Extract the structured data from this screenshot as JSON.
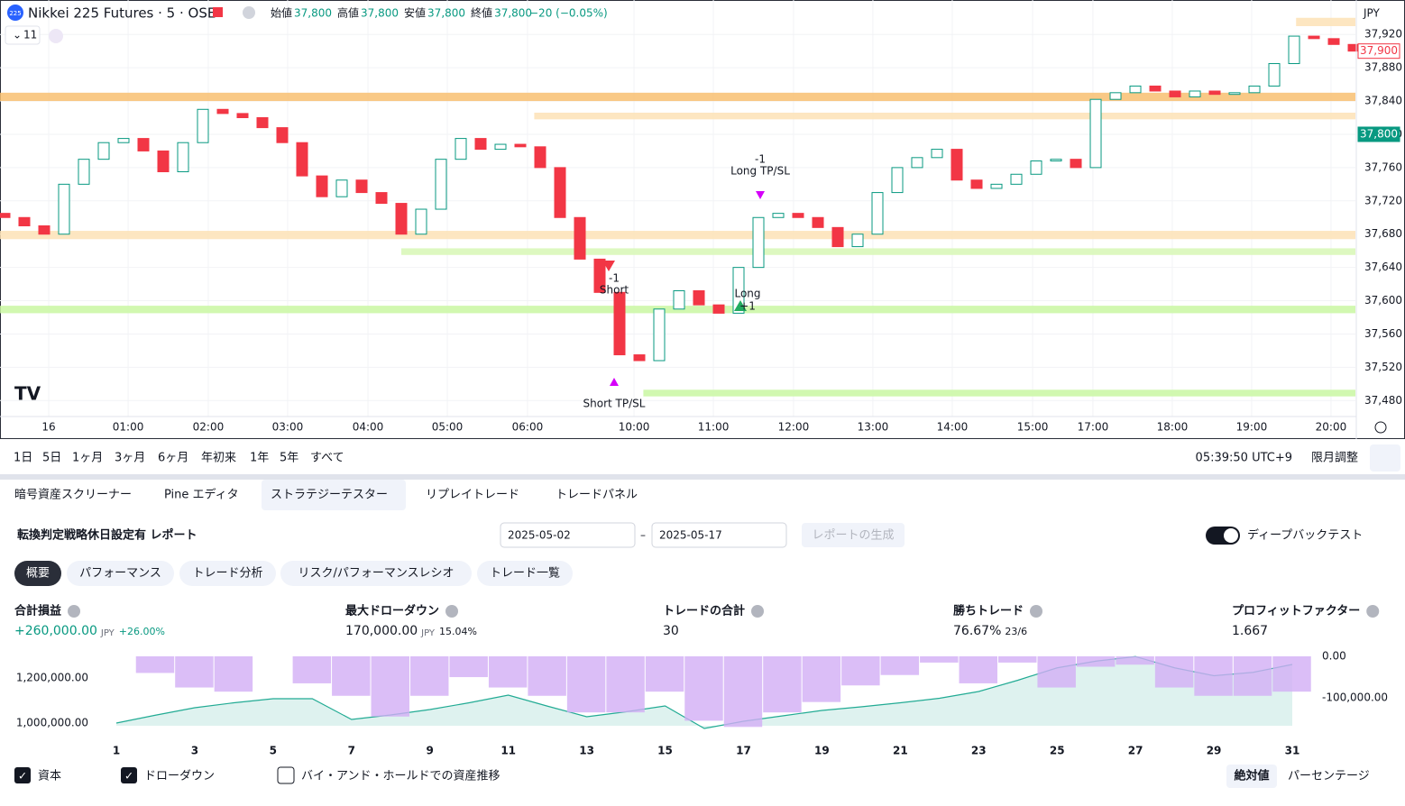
{
  "header": {
    "logo": "225",
    "symbol": "Nikkei 225 Futures · 5 · OSE",
    "indicator_count": "11",
    "ohlc": [
      {
        "label": "始値",
        "value": "37,800"
      },
      {
        "label": "高値",
        "value": "37,800"
      },
      {
        "label": "安値",
        "value": "37,800"
      },
      {
        "label": "終値",
        "value": "37,800"
      }
    ],
    "change": "−20 (−0.05%)"
  },
  "toolbar": {
    "ranges": [
      "1日",
      "5日",
      "1ヶ月",
      "3ヶ月",
      "6ヶ月",
      "年初来",
      "1年",
      "5年",
      "すべて"
    ],
    "clock": "05:39:50 UTC+9",
    "adjust": "限月調整"
  },
  "panel": {
    "tabs": [
      "暗号資産スクリーナー",
      "Pine エディタ",
      "ストラテジーテスター",
      "リプレイトレード",
      "トレードパネル"
    ],
    "report_title": "転換判定戦略休日設定有 レポート",
    "date_from": "2025-05-02",
    "date_to": "2025-05-17",
    "generate": "レポートの生成",
    "deep_backtest": "ディープバックテスト",
    "subtabs": [
      "概要",
      "パフォーマンス",
      "トレード分析",
      "リスク/パフォーマンスレシオ",
      "トレード一覧"
    ],
    "metrics": [
      {
        "label": "合計損益",
        "value": "+260,000.00",
        "unit": "JPY",
        "extra": "+26.00%"
      },
      {
        "label": "最大ドローダウン",
        "value": "170,000.00",
        "unit": "JPY",
        "extra": "15.04%"
      },
      {
        "label": "トレードの合計",
        "value": "30"
      },
      {
        "label": "勝ちトレード",
        "value": "76.67%",
        "extra": "23/6"
      },
      {
        "label": "プロフィットファクター",
        "value": "1.667"
      }
    ],
    "buy_hold": "バイ・アンド・ホールドでの資産推移",
    "modes": [
      "絶対値",
      "パーセンテージ"
    ]
  },
  "chart_data": [
    {
      "type": "candlestick",
      "currency": "JPY",
      "up_color": "#089981",
      "down_color": "#f23645",
      "open": [
        37705,
        37700,
        37690,
        37680,
        37740,
        37770,
        37790,
        37795,
        37780,
        37755,
        37790,
        37830,
        37825,
        37820,
        37808,
        37790,
        37750,
        37725,
        37745,
        37730,
        37717,
        37680,
        37710,
        37770,
        37795,
        37782,
        37788,
        37785,
        37760,
        37700,
        37650,
        37610,
        37535,
        37528,
        37590,
        37612,
        37595,
        37585,
        37640,
        37700,
        37705,
        37700,
        37688,
        37665,
        37680,
        37730,
        37760,
        37772,
        37782,
        37745,
        37735,
        37740,
        37752,
        37768,
        37770,
        37760,
        37842,
        37850,
        37858,
        37852,
        37845,
        37852,
        37848,
        37850,
        37858,
        37885,
        37918,
        37915,
        37908
      ],
      "close": [
        37700,
        37690,
        37680,
        37740,
        37770,
        37790,
        37795,
        37780,
        37755,
        37790,
        37830,
        37825,
        37820,
        37808,
        37790,
        37750,
        37725,
        37745,
        37730,
        37717,
        37680,
        37710,
        37770,
        37795,
        37782,
        37788,
        37785,
        37760,
        37700,
        37650,
        37610,
        37535,
        37528,
        37590,
        37612,
        37595,
        37585,
        37640,
        37700,
        37705,
        37700,
        37688,
        37665,
        37680,
        37730,
        37760,
        37772,
        37782,
        37745,
        37735,
        37740,
        37752,
        37768,
        37770,
        37760,
        37842,
        37850,
        37858,
        37852,
        37845,
        37852,
        37848,
        37850,
        37858,
        37885,
        37918,
        37915,
        37908,
        37900
      ],
      "xlim": [
        -0.227,
        68.09
      ],
      "xticks": [
        {
          "value": 2.23,
          "label": "16"
        },
        {
          "value": 6.23,
          "label": "01:00"
        },
        {
          "value": 10.27,
          "label": "02:00"
        },
        {
          "value": 14.27,
          "label": "03:00"
        },
        {
          "value": 18.32,
          "label": "04:00"
        },
        {
          "value": 22.32,
          "label": "05:00"
        },
        {
          "value": 26.36,
          "label": "06:00"
        },
        {
          "value": 31.73,
          "label": "10:00"
        },
        {
          "value": 35.73,
          "label": "11:00"
        },
        {
          "value": 39.77,
          "label": "12:00"
        },
        {
          "value": 43.77,
          "label": "13:00"
        },
        {
          "value": 47.77,
          "label": "14:00"
        },
        {
          "value": 51.82,
          "label": "15:00"
        },
        {
          "value": 54.86,
          "label": "17:00"
        },
        {
          "value": 58.86,
          "label": "18:00"
        },
        {
          "value": 62.86,
          "label": "19:00"
        },
        {
          "value": 66.86,
          "label": "20:00"
        }
      ],
      "ylim": [
        37463,
        37956
      ],
      "yticks": [
        {
          "value": 37480,
          "label": "37,480"
        },
        {
          "value": 37520,
          "label": "37,520"
        },
        {
          "value": 37560,
          "label": "37,560"
        },
        {
          "value": 37600,
          "label": "37,600"
        },
        {
          "value": 37640,
          "label": "37,640"
        },
        {
          "value": 37680,
          "label": "37,680"
        },
        {
          "value": 37720,
          "label": "37,720"
        },
        {
          "value": 37760,
          "label": "37,760"
        },
        {
          "value": 37800,
          "label": "37,800"
        },
        {
          "value": 37840,
          "label": "37,840"
        },
        {
          "value": 37880,
          "label": "37,880"
        },
        {
          "value": 37920,
          "label": "37,920"
        }
      ],
      "last_price": {
        "value": 37900,
        "label": "37,900"
      },
      "marked_price": {
        "value": 37800,
        "label": "37,800"
      },
      "zones": [
        {
          "from": 37840,
          "to": 37850,
          "start": -0.227,
          "color": "#f8c071"
        },
        {
          "from": 37818,
          "to": 37826,
          "start": 26.7,
          "color": "#fde2b6"
        },
        {
          "from": 37674,
          "to": 37684,
          "start": -0.227,
          "color": "#fde2b6"
        },
        {
          "from": 37930,
          "to": 37940,
          "start": 65.1,
          "color": "#fde2b6"
        },
        {
          "from": 37655,
          "to": 37663,
          "start": 20,
          "color": "#d7f7b5"
        },
        {
          "from": 37585,
          "to": 37594,
          "start": -0.227,
          "color": "#c9f7a2"
        },
        {
          "from": 37485,
          "to": 37493,
          "start": 32.2,
          "color": "#c9f7a2"
        }
      ],
      "annotations": [
        "-1",
        "Long TP/SL",
        "-1",
        "Short",
        "Long",
        "+1",
        "Short TP/SL"
      ]
    },
    {
      "type": "equity-drawdown",
      "x": [
        1,
        2,
        3,
        4,
        5,
        6,
        7,
        8,
        9,
        10,
        11,
        12,
        13,
        14,
        15,
        16,
        17,
        18,
        19,
        20,
        21,
        22,
        23,
        24,
        25,
        26,
        27,
        28,
        29,
        30,
        31
      ],
      "series": [
        {
          "name": "資本",
          "color": "#22ab94",
          "values": [
            1000000,
            1035000,
            1068000,
            1090000,
            1108000,
            1108000,
            1016000,
            1036000,
            1060000,
            1090000,
            1124000,
            1075000,
            1028000,
            1050000,
            1076000,
            976000,
            1008000,
            1032000,
            1056000,
            1072000,
            1090000,
            1110000,
            1140000,
            1190000,
            1245000,
            1275000,
            1295000,
            1245000,
            1210000,
            1225000,
            1260000
          ]
        },
        {
          "name": "ドローダウン",
          "color": "#d2aef5",
          "axis": "y2",
          "values": [
            0,
            -40000,
            -75000,
            -85000,
            0,
            -65000,
            -95000,
            -145000,
            -95000,
            -50000,
            -75000,
            -95000,
            -135000,
            -135000,
            -85000,
            -155000,
            -170000,
            -135000,
            -110000,
            -70000,
            -45000,
            -15000,
            -65000,
            -15000,
            -75000,
            -25000,
            -20000,
            -75000,
            -95000,
            -95000,
            -85000
          ]
        }
      ],
      "xlim": [
        1,
        31
      ],
      "xticks": [
        1,
        3,
        5,
        7,
        9,
        11,
        13,
        15,
        17,
        19,
        21,
        23,
        25,
        27,
        29,
        31
      ],
      "ylim": [
        968000,
        1296000
      ],
      "yticks": [
        {
          "value": 1000000,
          "label": "1,000,000.00"
        },
        {
          "value": 1200000,
          "label": "1,200,000.00"
        }
      ],
      "y2lim": [
        -178000,
        0
      ],
      "y2ticks": [
        {
          "value": 0,
          "label": "0.00"
        },
        {
          "value": -100000,
          "label": "-100,000.00"
        }
      ]
    }
  ]
}
